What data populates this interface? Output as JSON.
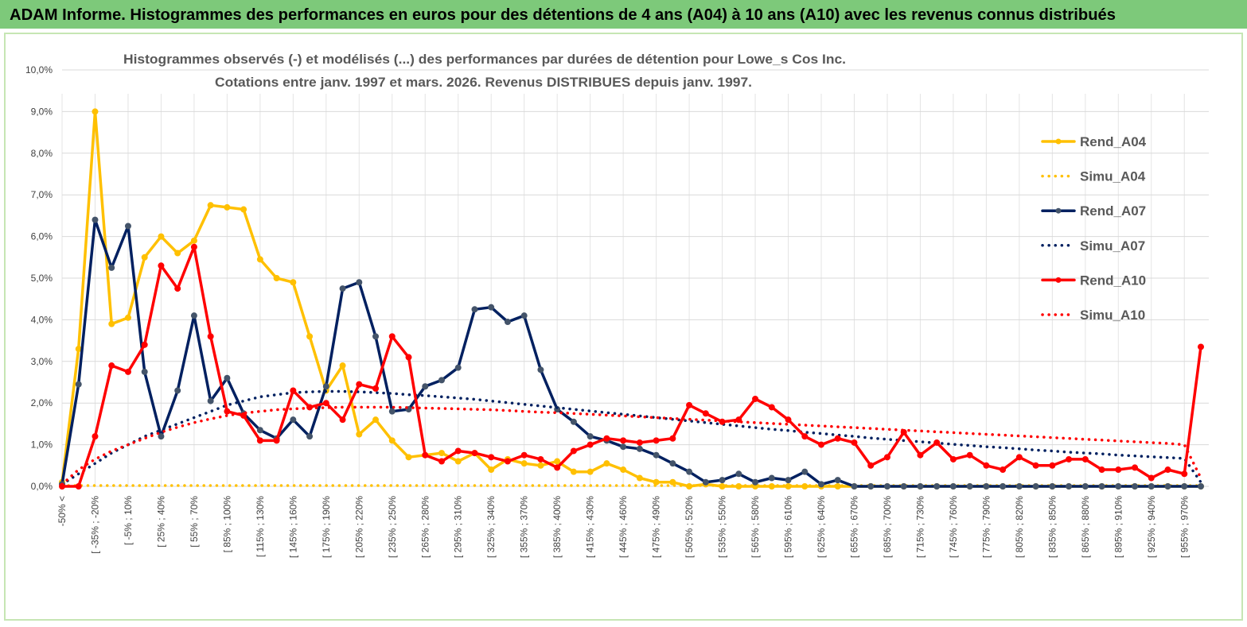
{
  "header": {
    "title": "ADAM Informe. Histogrammes des performances en euros pour des détentions de 4 ans (A04) à 10 ans (A10) avec les revenus connus distribués"
  },
  "chart_data": {
    "type": "line",
    "title": "Histogrammes observés (-)  et modélisés (...) des performances par durées de détention pour Lowe_s Cos Inc.",
    "subtitle": "Cotations entre janv. 1997 et mars. 2026. Revenus DISTRIBUES depuis janv. 1997.",
    "categories": [
      "-50% <",
      null,
      "[ -35% ; -20%",
      null,
      "[ -5% ; 10%",
      null,
      "[ 25% ; 40%",
      null,
      "[ 55% ; 70%",
      null,
      "[ 85% ; 100%",
      null,
      "[ 115% ; 130%",
      null,
      "[ 145% ; 160%",
      null,
      "[ 175% ; 190%",
      null,
      "[ 205% ; 220%",
      null,
      "[ 235% ; 250%",
      null,
      "[ 265% ; 280%",
      null,
      "[ 295% ; 310%",
      null,
      "[ 325% ; 340%",
      null,
      "[ 355% ; 370%",
      null,
      "[ 385% ; 400%",
      null,
      "[ 415% ; 430%",
      null,
      "[ 445% ; 460%",
      null,
      "[ 475% ; 490%",
      null,
      "[ 505% ; 520%",
      null,
      "[ 535% ; 550%",
      null,
      "[ 565% ; 580%",
      null,
      "[ 595% ; 610%",
      null,
      "[ 625% ; 640%",
      null,
      "[ 655% ; 670%",
      null,
      "[ 685% ; 700%",
      null,
      "[ 715% ; 730%",
      null,
      "[ 745% ; 760%",
      null,
      "[ 775% ; 790%",
      null,
      "[ 805% ; 820%",
      null,
      "[ 835% ; 850%",
      null,
      "[ 865% ; 880%",
      null,
      "[ 895% ; 910%",
      null,
      "[ 925% ; 940%",
      null,
      "[ 955% ; 970%",
      null
    ],
    "series": [
      {
        "name": "Rend_A04",
        "color": "#FFC000",
        "style": "solid",
        "values": [
          0.1,
          3.3,
          9.0,
          3.9,
          4.05,
          5.5,
          6.0,
          5.6,
          5.9,
          6.75,
          6.7,
          6.65,
          5.45,
          5.0,
          4.9,
          3.6,
          2.3,
          2.9,
          1.25,
          1.6,
          1.1,
          0.7,
          0.75,
          0.8,
          0.6,
          0.8,
          0.4,
          0.65,
          0.55,
          0.5,
          0.6,
          0.35,
          0.35,
          0.55,
          0.4,
          0.2,
          0.1,
          0.1,
          0,
          0.05,
          0,
          0,
          0,
          0,
          0,
          0,
          0,
          0,
          0,
          0,
          0,
          0,
          0,
          0,
          0,
          0,
          0,
          0,
          0,
          0,
          0,
          0,
          0,
          0,
          0,
          0,
          0,
          0,
          0,
          0
        ]
      },
      {
        "name": "Simu_A04",
        "color": "#FFC000",
        "style": "dotted",
        "values": [
          0.02,
          0.02,
          0.02,
          0.02,
          0.02,
          0.02,
          0.02,
          0.02,
          0.02,
          0.02,
          0.02,
          0.02,
          0.02,
          0.02,
          0.02,
          0.02,
          0.02,
          0.02,
          0.02,
          0.02,
          0.02,
          0.02,
          0.02,
          0.02,
          0.02,
          0.02,
          0.02,
          0.02,
          0.02,
          0.02,
          0.02,
          0.02,
          0.02,
          0.02,
          0.02,
          0.02,
          0.02,
          0.02,
          0.02,
          0.02,
          0.02,
          0.02,
          0.02,
          0.02,
          0.02,
          0.02,
          0.02,
          0.02,
          0.02,
          0.02,
          0.02,
          0.02,
          0.02,
          0.02,
          0.02,
          0.02,
          0.02,
          0.02,
          0.02,
          0.02,
          0.02,
          0.02,
          0.02,
          0.02,
          0.02,
          0.02,
          0.02,
          0.02,
          0.02,
          0.02
        ]
      },
      {
        "name": "Rend_A07",
        "color": "#002060",
        "marker_color": "#44546A",
        "style": "solid",
        "values": [
          0.05,
          2.45,
          6.4,
          5.25,
          6.25,
          2.75,
          1.2,
          2.3,
          4.1,
          2.05,
          2.6,
          1.75,
          1.35,
          1.15,
          1.6,
          1.2,
          2.4,
          4.75,
          4.9,
          3.6,
          1.8,
          1.85,
          2.4,
          2.55,
          2.85,
          4.25,
          4.3,
          3.95,
          4.1,
          2.8,
          1.85,
          1.55,
          1.2,
          1.1,
          0.95,
          0.9,
          0.75,
          0.55,
          0.35,
          0.1,
          0.15,
          0.3,
          0.1,
          0.2,
          0.15,
          0.35,
          0.05,
          0.15,
          0,
          0,
          0,
          0,
          0,
          0,
          0,
          0,
          0,
          0,
          0,
          0,
          0,
          0,
          0,
          0,
          0,
          0,
          0,
          0,
          0,
          0
        ]
      },
      {
        "name": "Simu_A07",
        "color": "#002060",
        "style": "dotted",
        "values": [
          0.05,
          0.3,
          0.55,
          0.8,
          1.0,
          1.2,
          1.35,
          1.5,
          1.65,
          1.8,
          1.95,
          2.05,
          2.15,
          2.2,
          2.25,
          2.27,
          2.28,
          2.28,
          2.27,
          2.25,
          2.23,
          2.2,
          2.18,
          2.15,
          2.12,
          2.09,
          2.05,
          2.01,
          1.97,
          1.93,
          1.89,
          1.85,
          1.81,
          1.77,
          1.73,
          1.69,
          1.65,
          1.61,
          1.57,
          1.53,
          1.49,
          1.45,
          1.41,
          1.37,
          1.34,
          1.3,
          1.27,
          1.23,
          1.2,
          1.16,
          1.13,
          1.1,
          1.07,
          1.04,
          1.01,
          0.98,
          0.95,
          0.93,
          0.9,
          0.87,
          0.85,
          0.82,
          0.8,
          0.78,
          0.75,
          0.73,
          0.71,
          0.69,
          0.67,
          0.1
        ]
      },
      {
        "name": "Rend_A10",
        "color": "#FF0000",
        "style": "solid",
        "values": [
          0,
          0,
          1.2,
          2.9,
          2.75,
          3.4,
          5.3,
          4.75,
          5.75,
          3.6,
          1.8,
          1.7,
          1.1,
          1.1,
          2.3,
          1.9,
          2.0,
          1.6,
          2.45,
          2.35,
          3.6,
          3.1,
          0.75,
          0.6,
          0.85,
          0.8,
          0.7,
          0.6,
          0.75,
          0.65,
          0.45,
          0.85,
          1.0,
          1.15,
          1.1,
          1.05,
          1.1,
          1.15,
          1.95,
          1.75,
          1.55,
          1.6,
          2.1,
          1.9,
          1.6,
          1.2,
          1.0,
          1.15,
          1.05,
          0.5,
          0.7,
          1.3,
          0.75,
          1.05,
          0.65,
          0.75,
          0.5,
          0.4,
          0.7,
          0.5,
          0.5,
          0.65,
          0.65,
          0.4,
          0.4,
          0.45,
          0.2,
          0.4,
          0.3,
          3.35
        ]
      },
      {
        "name": "Simu_A10",
        "color": "#FF0000",
        "style": "dotted",
        "values": [
          0.05,
          0.4,
          0.65,
          0.85,
          1.0,
          1.15,
          1.3,
          1.42,
          1.53,
          1.62,
          1.7,
          1.76,
          1.8,
          1.84,
          1.86,
          1.88,
          1.89,
          1.9,
          1.9,
          1.9,
          1.9,
          1.89,
          1.88,
          1.87,
          1.86,
          1.85,
          1.84,
          1.82,
          1.8,
          1.78,
          1.77,
          1.75,
          1.73,
          1.71,
          1.69,
          1.67,
          1.65,
          1.63,
          1.61,
          1.59,
          1.57,
          1.55,
          1.53,
          1.51,
          1.49,
          1.47,
          1.45,
          1.43,
          1.41,
          1.39,
          1.37,
          1.35,
          1.33,
          1.31,
          1.29,
          1.27,
          1.25,
          1.23,
          1.21,
          1.19,
          1.17,
          1.15,
          1.13,
          1.11,
          1.09,
          1.07,
          1.05,
          1.03,
          1.0,
          0.2
        ]
      }
    ],
    "ylim": [
      0,
      10
    ],
    "yticks": [
      {
        "value": 0,
        "label": "0,0%"
      },
      {
        "value": 1,
        "label": "1,0%"
      },
      {
        "value": 2,
        "label": "2,0%"
      },
      {
        "value": 3,
        "label": "3,0%"
      },
      {
        "value": 4,
        "label": "4,0%"
      },
      {
        "value": 5,
        "label": "5,0%"
      },
      {
        "value": 6,
        "label": "6,0%"
      },
      {
        "value": 7,
        "label": "7,0%"
      },
      {
        "value": 8,
        "label": "8,0%"
      },
      {
        "value": 9,
        "label": "9,0%"
      },
      {
        "value": 10,
        "label": "10,0%"
      }
    ],
    "grid": true,
    "legend": "right"
  }
}
